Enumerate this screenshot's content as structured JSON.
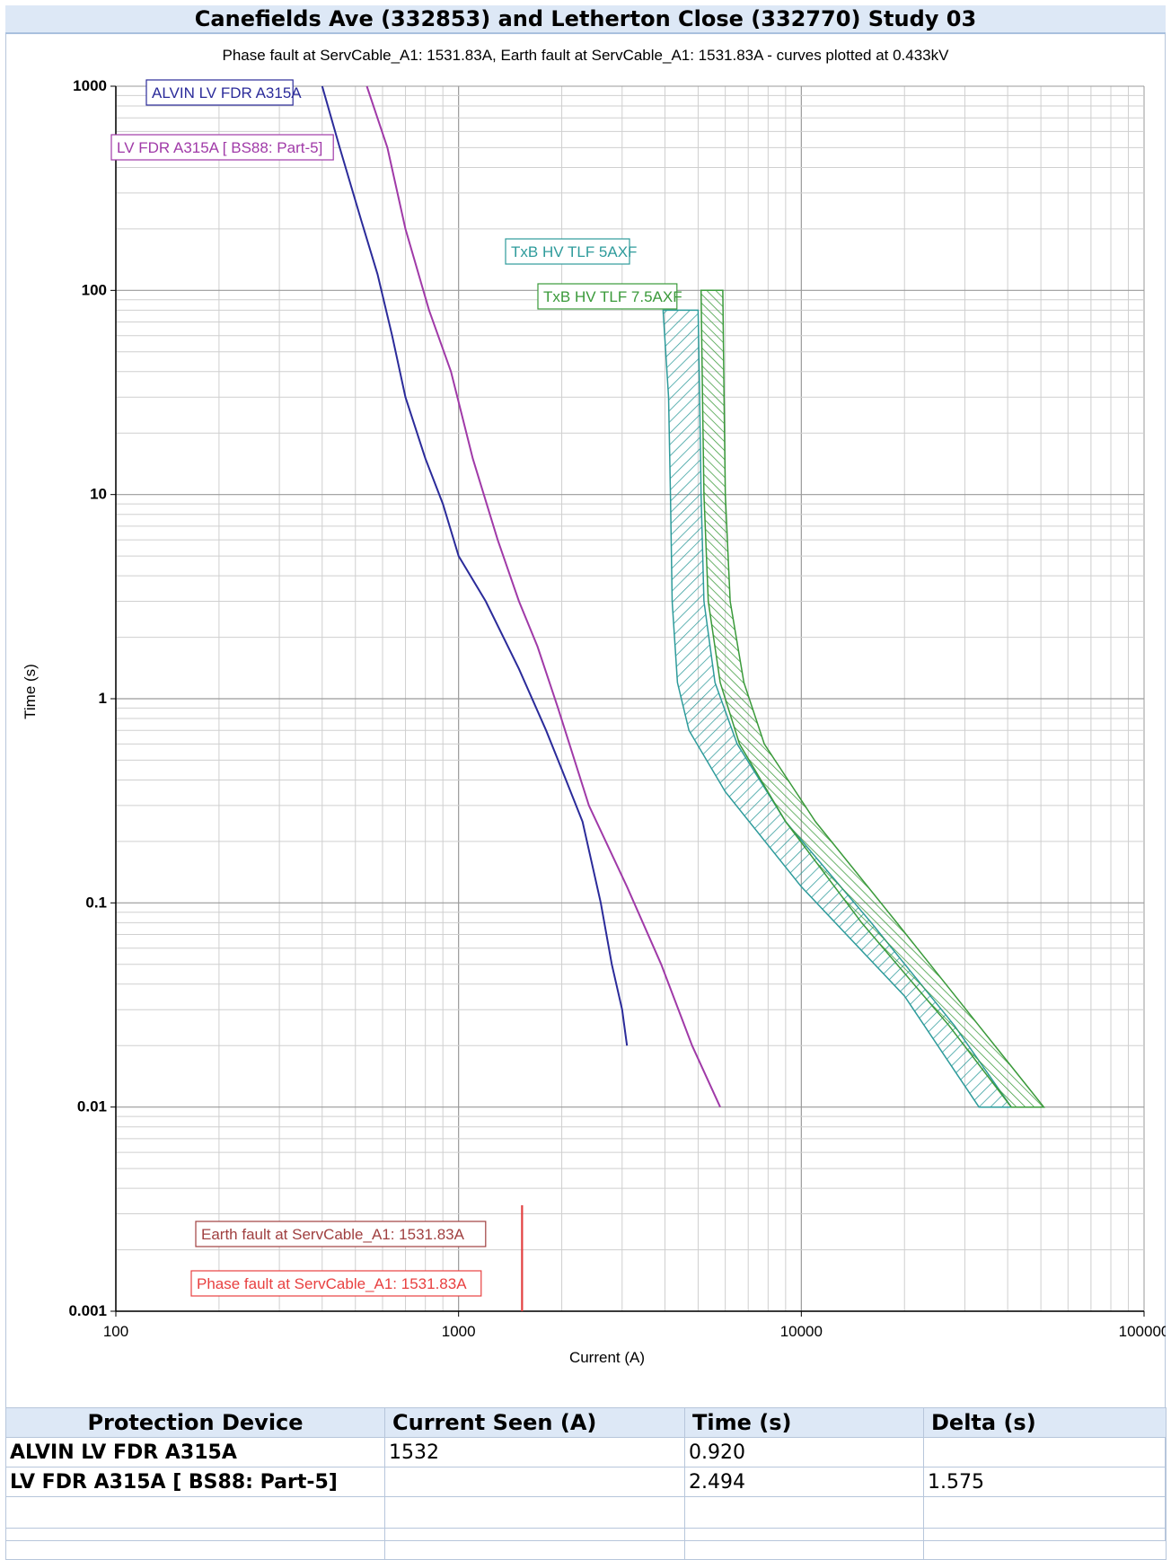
{
  "chart_data": {
    "type": "line",
    "title": "Canefields Ave (332853) and Letherton Close (332770) Study 03",
    "subtitle": "Phase fault at ServCable_A1: 1531.83A, Earth fault at ServCable_A1: 1531.83A - curves plotted at 0.433kV",
    "xlabel": "Current (A)",
    "ylabel": "Time (s)",
    "x_scale": "log",
    "y_scale": "log",
    "xlim": [
      100,
      100000
    ],
    "ylim": [
      0.001,
      1000
    ],
    "x_ticks": [
      100,
      1000,
      10000,
      100000
    ],
    "x_tick_labels": [
      "100",
      "1000",
      "10000",
      "100000"
    ],
    "y_ticks": [
      0.001,
      0.01,
      0.1,
      1,
      10,
      100,
      1000
    ],
    "y_tick_labels": [
      "0.001",
      "0.01",
      "0.1",
      "1",
      "10",
      "100",
      "1000"
    ],
    "grid": true,
    "series": [
      {
        "name": "ALVIN LV FDR A315A",
        "color": "#2b2b9a",
        "points": [
          [
            400,
            1000
          ],
          [
            450,
            500
          ],
          [
            520,
            220
          ],
          [
            580,
            120
          ],
          [
            640,
            60
          ],
          [
            700,
            30
          ],
          [
            800,
            15
          ],
          [
            900,
            9
          ],
          [
            1000,
            5
          ],
          [
            1200,
            3
          ],
          [
            1500,
            1.4
          ],
          [
            1800,
            0.7
          ],
          [
            2000,
            0.45
          ],
          [
            2300,
            0.25
          ],
          [
            2600,
            0.1
          ],
          [
            2800,
            0.05
          ],
          [
            3000,
            0.03
          ],
          [
            3100,
            0.02
          ]
        ]
      },
      {
        "name": "LV FDR A315A [ BS88: Part-5]",
        "color": "#a03aa8",
        "points": [
          [
            540,
            1000
          ],
          [
            620,
            500
          ],
          [
            700,
            200
          ],
          [
            820,
            80
          ],
          [
            950,
            40
          ],
          [
            1100,
            15
          ],
          [
            1300,
            6
          ],
          [
            1500,
            3
          ],
          [
            1700,
            1.8
          ],
          [
            1950,
            0.9
          ],
          [
            2400,
            0.3
          ],
          [
            3100,
            0.12
          ],
          [
            3900,
            0.05
          ],
          [
            4800,
            0.02
          ],
          [
            5800,
            0.01
          ]
        ]
      },
      {
        "name": "TxB HV TLF 5AXF",
        "color": "#2e9b9b",
        "hatched": true,
        "left": [
          [
            3950,
            80
          ],
          [
            4100,
            30
          ],
          [
            4150,
            10
          ],
          [
            4200,
            3
          ],
          [
            4350,
            1.2
          ],
          [
            4700,
            0.7
          ],
          [
            6000,
            0.35
          ],
          [
            10000,
            0.12
          ],
          [
            20000,
            0.035
          ],
          [
            33000,
            0.01
          ]
        ],
        "right": [
          [
            5000,
            80
          ],
          [
            5050,
            30
          ],
          [
            5100,
            10
          ],
          [
            5200,
            3
          ],
          [
            5600,
            1.2
          ],
          [
            6500,
            0.6
          ],
          [
            9000,
            0.25
          ],
          [
            16000,
            0.08
          ],
          [
            28000,
            0.025
          ],
          [
            41000,
            0.01
          ]
        ]
      },
      {
        "name": "TxB HV TLF 7.5AXF",
        "color": "#3a9a3a",
        "hatched": true,
        "left": [
          [
            5100,
            100
          ],
          [
            5150,
            30
          ],
          [
            5200,
            10
          ],
          [
            5350,
            3
          ],
          [
            5800,
            1.2
          ],
          [
            6600,
            0.6
          ],
          [
            9000,
            0.25
          ],
          [
            15000,
            0.08
          ],
          [
            27000,
            0.025
          ],
          [
            41000,
            0.01
          ]
        ],
        "right": [
          [
            5900,
            100
          ],
          [
            5950,
            30
          ],
          [
            6000,
            10
          ],
          [
            6200,
            3
          ],
          [
            6800,
            1.2
          ],
          [
            7800,
            0.6
          ],
          [
            11000,
            0.25
          ],
          [
            19000,
            0.08
          ],
          [
            33000,
            0.025
          ],
          [
            51000,
            0.01
          ]
        ]
      }
    ],
    "fault_markers": [
      {
        "name": "Earth fault at ServCable_A1: 1531.83A",
        "x": 1531.83,
        "color": "#a04040"
      },
      {
        "name": "Phase fault at ServCable_A1: 1531.83A",
        "x": 1531.83,
        "color": "#e84040"
      }
    ]
  },
  "table": {
    "headers": [
      "Protection Device",
      "Current Seen (A)",
      "Time (s)",
      "Delta (s)"
    ],
    "rows": [
      [
        "ALVIN LV FDR A315A",
        "1532",
        "0.920",
        ""
      ],
      [
        "LV FDR A315A [ BS88: Part-5]",
        "",
        "2.494",
        "1.575"
      ],
      [
        "",
        "",
        "",
        ""
      ],
      [
        "",
        "",
        "",
        ""
      ]
    ]
  }
}
